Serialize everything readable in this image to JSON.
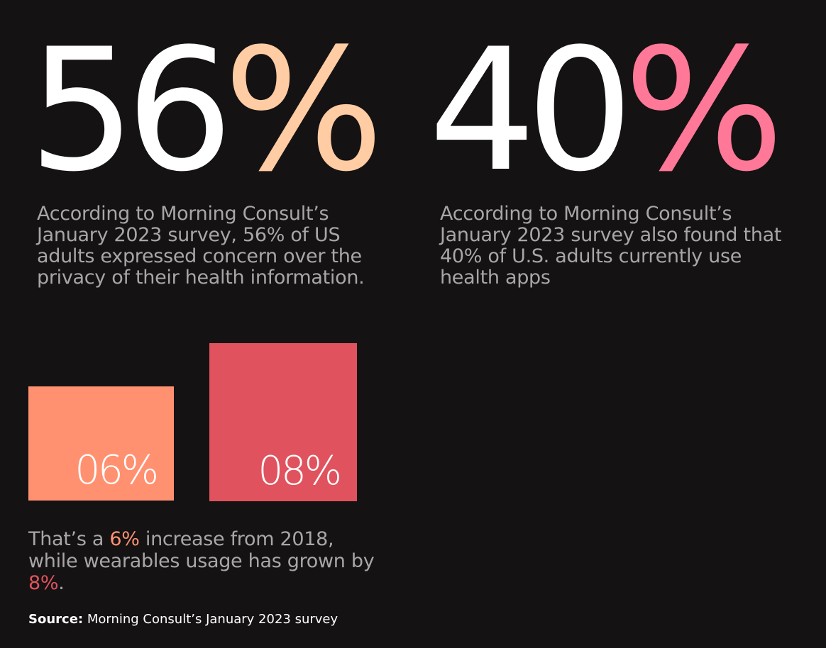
{
  "stats": [
    {
      "number": "56",
      "percent_sign": "%",
      "percent_color": "#ffcca3",
      "description": "According to Morning Consult’s January 2023 survey, 56% of US adults expressed concern over the privacy of their health information."
    },
    {
      "number": "40",
      "percent_sign": "%",
      "percent_color": "#ff7897",
      "description": "According to Morning Consult’s January 2023 survey also found that 40% of U.S. adults currently use health apps"
    }
  ],
  "boxes": [
    {
      "label": "06%",
      "color": "#ff9171"
    },
    {
      "label": "08%",
      "color": "#e0535e"
    }
  ],
  "summary": {
    "part1": "That’s a ",
    "highlight1": "6%",
    "part2": " increase from 2018, while wearables usage has grown by ",
    "highlight2": "8%",
    "part3": "."
  },
  "source": {
    "label": "Source:",
    "text": " Morning Consult’s January 2023 survey"
  }
}
